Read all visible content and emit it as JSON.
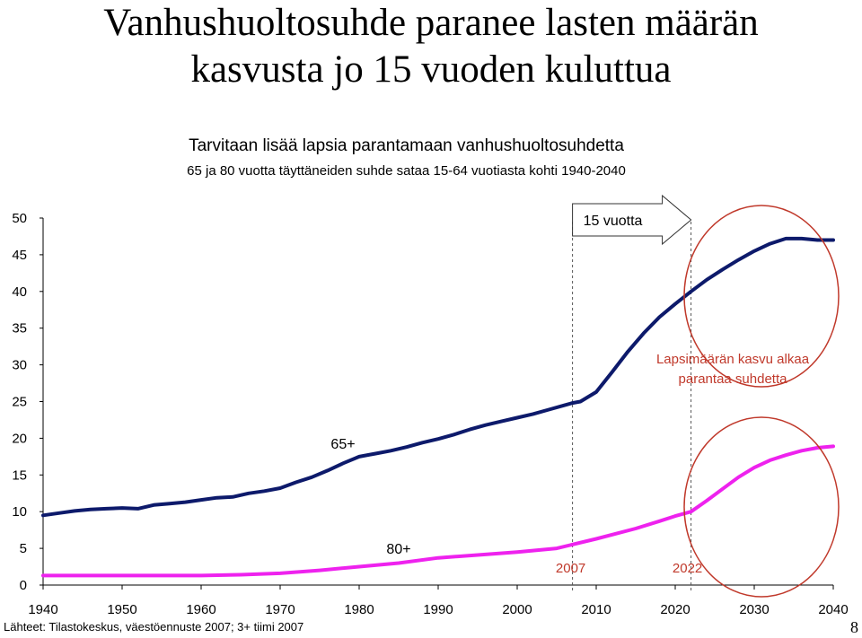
{
  "slide": {
    "title_line1": "Vanhushuoltosuhde paranee lasten määrän",
    "title_line2": "kasvusta jo 15 vuoden kuluttua",
    "source": "Lähteet: Tilastokeskus, väestöennuste 2007; 3+ tiimi 2007",
    "page_number": "8"
  },
  "chart_data": {
    "type": "line",
    "title": "Tarvitaan lisää lapsia parantamaan vanhushuoltosuhdetta",
    "subtitle": "65 ja 80 vuotta täyttäneiden suhde sataa 15-64 vuotiasta kohti 1940-2040",
    "xlabel": "",
    "ylabel": "",
    "xlim": [
      1940,
      2040
    ],
    "ylim": [
      0,
      50
    ],
    "x_ticks": [
      1940,
      1950,
      1960,
      1970,
      1980,
      1990,
      2000,
      2010,
      2020,
      2030,
      2040
    ],
    "y_ticks": [
      0,
      5,
      10,
      15,
      20,
      25,
      30,
      35,
      40,
      45,
      50
    ],
    "grid": false,
    "legend": "none",
    "series": [
      {
        "name": "65+",
        "color": "#0d1a6b",
        "x": [
          1940,
          1942,
          1944,
          1946,
          1948,
          1950,
          1952,
          1954,
          1956,
          1958,
          1960,
          1962,
          1964,
          1966,
          1968,
          1970,
          1972,
          1974,
          1976,
          1978,
          1980,
          1982,
          1984,
          1986,
          1988,
          1990,
          1992,
          1994,
          1996,
          1998,
          2000,
          2002,
          2004,
          2006,
          2007,
          2008,
          2010,
          2012,
          2014,
          2016,
          2018,
          2020,
          2022,
          2024,
          2026,
          2028,
          2030,
          2032,
          2034,
          2036,
          2038,
          2040
        ],
        "values": [
          9.5,
          9.8,
          10.1,
          10.3,
          10.4,
          10.5,
          10.4,
          10.9,
          11.1,
          11.3,
          11.6,
          11.9,
          12.0,
          12.5,
          12.8,
          13.2,
          14.0,
          14.7,
          15.6,
          16.6,
          17.5,
          17.9,
          18.3,
          18.8,
          19.4,
          19.9,
          20.5,
          21.2,
          21.8,
          22.3,
          22.8,
          23.3,
          23.9,
          24.5,
          24.8,
          25.0,
          26.3,
          29.0,
          31.8,
          34.3,
          36.5,
          38.3,
          40.0,
          41.6,
          43.0,
          44.3,
          45.5,
          46.5,
          47.2,
          47.2,
          47.0,
          47.0
        ]
      },
      {
        "name": "80+",
        "color": "#ee22ee",
        "x": [
          1940,
          1945,
          1950,
          1955,
          1960,
          1965,
          1970,
          1975,
          1980,
          1985,
          1990,
          1995,
          2000,
          2005,
          2010,
          2015,
          2018,
          2020,
          2022,
          2024,
          2026,
          2028,
          2030,
          2032,
          2034,
          2036,
          2038,
          2040
        ],
        "values": [
          1.3,
          1.3,
          1.3,
          1.3,
          1.3,
          1.4,
          1.6,
          2.0,
          2.5,
          3.0,
          3.7,
          4.1,
          4.5,
          5.0,
          6.3,
          7.7,
          8.7,
          9.4,
          10.0,
          11.5,
          13.1,
          14.7,
          16.0,
          17.0,
          17.7,
          18.3,
          18.7,
          18.9
        ]
      }
    ],
    "annotations": {
      "label_65": "65+",
      "label_80": "80+",
      "arrow_text": "15 vuotta",
      "note_line1": "Lapsimäärän kasvu alkaa",
      "note_line2": "parantaa suhdetta",
      "year_2007": "2007",
      "year_2022": "2022",
      "marker_years": [
        2007,
        2022
      ],
      "accent_color": "#c0392b"
    }
  }
}
